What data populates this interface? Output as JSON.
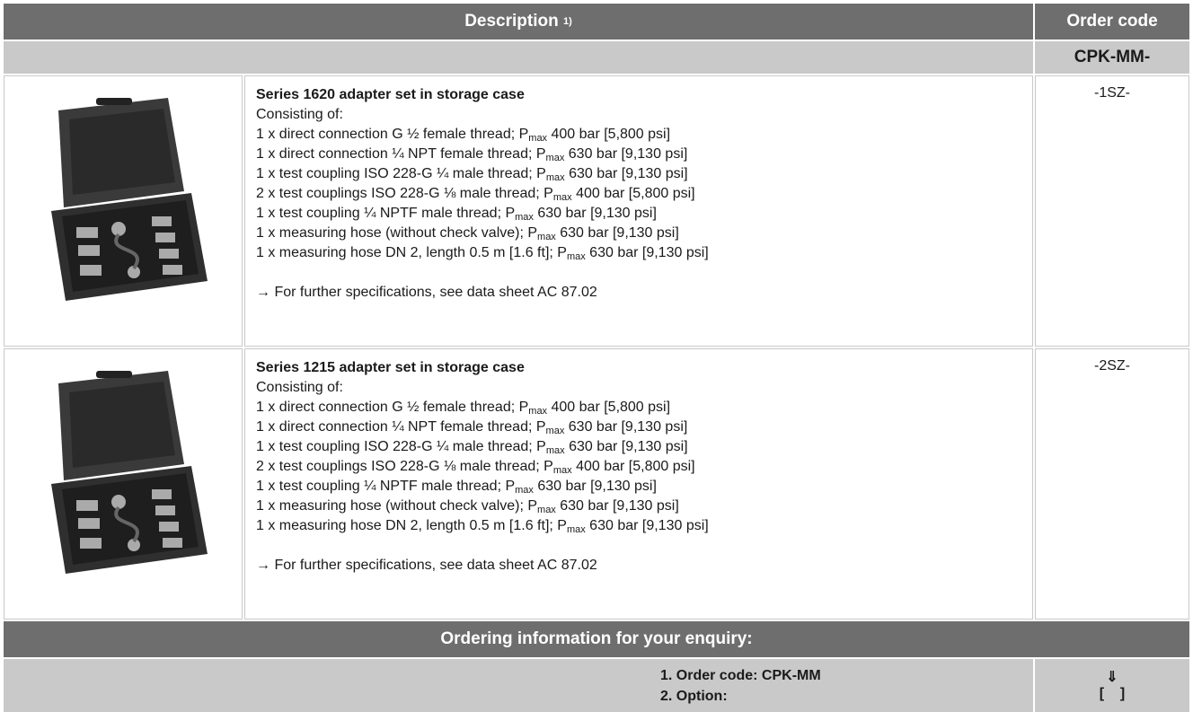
{
  "header": {
    "description": "Description",
    "description_note": "1)",
    "order_code": "Order code",
    "prefix": "CPK-MM-"
  },
  "products": [
    {
      "title": "Series 1620 adapter set in storage case",
      "intro": "Consisting of:",
      "code": "-1SZ-",
      "lines": [
        {
          "pre": "1 x direct connection G ½ female thread; P",
          "sub": "max",
          "post": " 400 bar [5,800 psi]"
        },
        {
          "pre": "1 x direct connection ¼ NPT female thread; P",
          "sub": "max",
          "post": " 630 bar [9,130 psi]"
        },
        {
          "pre": "1 x test coupling ISO 228-G ¼ male thread; P",
          "sub": "max",
          "post": " 630 bar [9,130 psi]"
        },
        {
          "pre": "2 x test couplings ISO 228-G ⅛ male thread; P",
          "sub": "max",
          "post": " 400 bar [5,800 psi]"
        },
        {
          "pre": "1 x test coupling ¼ NPTF male thread; P",
          "sub": "max",
          "post": " 630 bar [9,130 psi]"
        },
        {
          "pre": "1 x measuring hose (without check valve); P",
          "sub": "max",
          "post": " 630 bar [9,130 psi]"
        },
        {
          "pre": "1 x measuring hose DN 2, length 0.5 m [1.6 ft]; P",
          "sub": "max",
          "post": " 630 bar [9,130 psi]"
        }
      ],
      "note": "→ For further specifications, see data sheet AC 87.02"
    },
    {
      "title": "Series 1215 adapter set in storage case",
      "intro": "Consisting of:",
      "code": "-2SZ-",
      "lines": [
        {
          "pre": "1 x direct connection G ½ female thread; P",
          "sub": "max",
          "post": " 400 bar [5,800 psi]"
        },
        {
          "pre": "1 x direct connection ¼ NPT female thread; P",
          "sub": "max",
          "post": " 630 bar [9,130 psi]"
        },
        {
          "pre": "1 x test coupling ISO 228-G ¼ male thread; P",
          "sub": "max",
          "post": " 630 bar [9,130 psi]"
        },
        {
          "pre": "2 x test couplings ISO 228-G ⅛ male thread; P",
          "sub": "max",
          "post": " 400 bar [5,800 psi]"
        },
        {
          "pre": "1 x test coupling ¼ NPTF male thread; P",
          "sub": "max",
          "post": " 630 bar [9,130 psi]"
        },
        {
          "pre": "1 x measuring hose (without check valve); P",
          "sub": "max",
          "post": " 630 bar [9,130 psi]"
        },
        {
          "pre": "1 x measuring hose DN 2, length 0.5 m [1.6 ft]; P",
          "sub": "max",
          "post": " 630 bar [9,130 psi]"
        }
      ],
      "note": "→ For further specifications, see data sheet AC 87.02"
    }
  ],
  "ordering": {
    "title": "Ordering information for your enquiry:",
    "step1": "1. Order code: CPK-MM",
    "step2": "2. Option:",
    "arrow": "⇓",
    "bracket": "[    ]"
  }
}
